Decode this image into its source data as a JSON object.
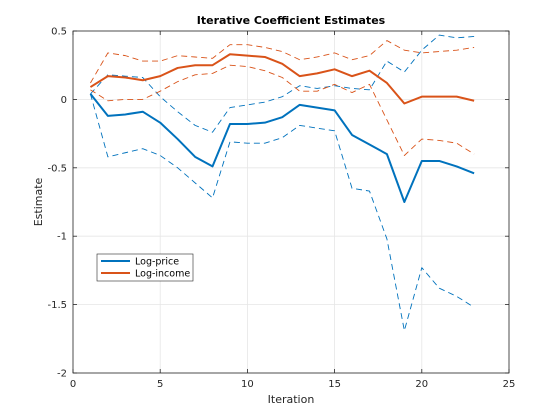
{
  "chart_data": {
    "type": "line",
    "title": "Iterative Coefficient Estimates",
    "xlabel": "Iteration",
    "ylabel": "Estimate",
    "xlim": [
      0,
      25
    ],
    "ylim": [
      -2,
      0.5
    ],
    "xticks": [
      0,
      5,
      10,
      15,
      20,
      25
    ],
    "yticks": [
      -2,
      -1.5,
      -1,
      -0.5,
      0,
      0.5
    ],
    "xtick_labels": [
      "0",
      "5",
      "10",
      "15",
      "20",
      "25"
    ],
    "ytick_labels": [
      "-2",
      "-1.5",
      "-1",
      "-0.5",
      "0",
      "0.5"
    ],
    "grid": true,
    "legend_position": "lower-left",
    "x": [
      1,
      2,
      3,
      4,
      5,
      6,
      7,
      8,
      9,
      10,
      11,
      12,
      13,
      14,
      15,
      16,
      17,
      18,
      19,
      20,
      21,
      22,
      23
    ],
    "series": [
      {
        "name": "Log-price",
        "color": "#0072BD",
        "style": "solid",
        "values": [
          0.04,
          -0.12,
          -0.11,
          -0.09,
          -0.17,
          -0.29,
          -0.42,
          -0.49,
          -0.18,
          -0.18,
          -0.17,
          -0.13,
          -0.04,
          -0.06,
          -0.08,
          -0.26,
          -0.33,
          -0.4,
          -0.75,
          -0.45,
          -0.45,
          -0.49,
          -0.54
        ]
      },
      {
        "name": "Log-income",
        "color": "#D95319",
        "style": "solid",
        "values": [
          0.09,
          0.17,
          0.16,
          0.14,
          0.17,
          0.23,
          0.25,
          0.25,
          0.33,
          0.32,
          0.31,
          0.26,
          0.17,
          0.19,
          0.22,
          0.17,
          0.21,
          0.12,
          -0.03,
          0.02,
          0.02,
          0.02,
          -0.01
        ]
      },
      {
        "color": "#0072BD",
        "style": "dashed",
        "values": [
          0.04,
          0.18,
          0.17,
          0.16,
          0.02,
          -0.09,
          -0.19,
          -0.24,
          -0.06,
          -0.04,
          -0.02,
          0.02,
          0.1,
          0.08,
          0.1,
          0.08,
          0.07,
          0.28,
          0.2,
          0.36,
          0.47,
          0.45,
          0.46
        ]
      },
      {
        "color": "#0072BD",
        "style": "dashed",
        "values": [
          0.04,
          -0.42,
          -0.39,
          -0.36,
          -0.41,
          -0.5,
          -0.61,
          -0.72,
          -0.31,
          -0.32,
          -0.32,
          -0.28,
          -0.19,
          -0.21,
          -0.23,
          -0.65,
          -0.67,
          -1.02,
          -1.69,
          -1.23,
          -1.38,
          -1.44,
          -1.52
        ]
      },
      {
        "color": "#D95319",
        "style": "dashed",
        "values": [
          0.12,
          0.34,
          0.32,
          0.28,
          0.28,
          0.32,
          0.31,
          0.3,
          0.4,
          0.4,
          0.38,
          0.35,
          0.29,
          0.31,
          0.34,
          0.29,
          0.32,
          0.43,
          0.36,
          0.34,
          0.35,
          0.36,
          0.38
        ]
      },
      {
        "color": "#D95319",
        "style": "dashed",
        "values": [
          0.07,
          -0.01,
          0.0,
          0.0,
          0.06,
          0.13,
          0.18,
          0.19,
          0.25,
          0.24,
          0.21,
          0.16,
          0.06,
          0.06,
          0.11,
          0.05,
          0.11,
          -0.15,
          -0.41,
          -0.29,
          -0.3,
          -0.32,
          -0.4
        ]
      }
    ]
  }
}
